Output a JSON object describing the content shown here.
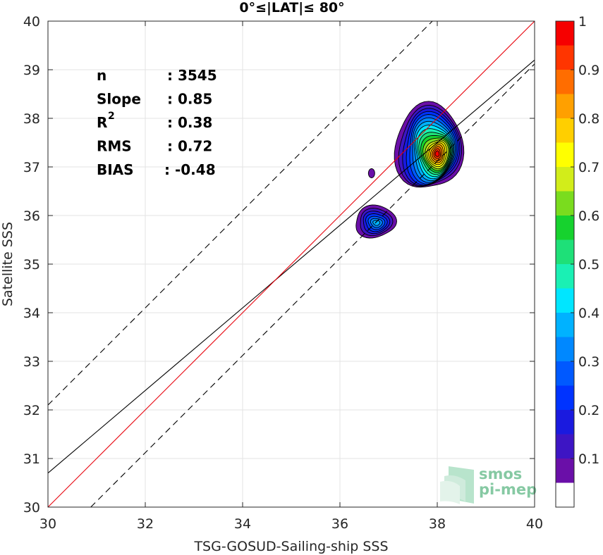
{
  "chart_data": {
    "type": "contour",
    "title": "0°≤|LAT|≤ 80°",
    "xlabel": "TSG-GOSUD-Sailing-ship SSS",
    "ylabel": "Satellite SSS",
    "xlim": [
      30,
      40
    ],
    "ylim": [
      30,
      40
    ],
    "x_ticks": [
      "30",
      "32",
      "34",
      "36",
      "38",
      "40"
    ],
    "y_ticks": [
      "30",
      "31",
      "32",
      "33",
      "34",
      "35",
      "36",
      "37",
      "38",
      "39",
      "40"
    ],
    "grid": true,
    "stats": [
      {
        "label": "n",
        "value": ": 3545"
      },
      {
        "label": "Slope",
        "value": ": 0.85"
      },
      {
        "label": "R",
        "sup": "2",
        "value": ": 0.38"
      },
      {
        "label": "RMS",
        "value": ": 0.72"
      },
      {
        "label": "BIAS",
        "value": ": -0.48"
      }
    ],
    "lines": {
      "identity": {
        "slope": 1,
        "intercept": 0,
        "color": "#e8000b"
      },
      "fit": {
        "slope": 0.85,
        "intercept": 5.2,
        "color": "#000000"
      },
      "upper_dashed": {
        "slope": 1,
        "intercept": 2.1,
        "color": "#000000"
      },
      "lower_dashed": {
        "slope": 1,
        "intercept": -0.88,
        "color": "#000000"
      }
    },
    "colorbar": {
      "ticks": [
        "0.1",
        "0.2",
        "0.3",
        "0.4",
        "0.5",
        "0.6",
        "0.7",
        "0.8",
        "0.9",
        "1"
      ],
      "range": [
        0,
        1
      ],
      "levels": [
        0,
        0.05,
        0.1,
        0.15,
        0.2,
        0.25,
        0.3,
        0.35,
        0.4,
        0.45,
        0.5,
        0.55,
        0.6,
        0.65,
        0.7,
        0.75,
        0.8,
        0.85,
        0.9,
        0.95,
        1.0
      ],
      "colors": [
        "#ffffff",
        "#6a0fa8",
        "#3d15c4",
        "#1a1adf",
        "#0033ff",
        "#0059ff",
        "#0088ff",
        "#00b2ff",
        "#00e6ff",
        "#1af0b4",
        "#1ee078",
        "#16d22e",
        "#7adc1e",
        "#d2ed1a",
        "#ffff00",
        "#ffcf00",
        "#ffa000",
        "#ff6d00",
        "#ff3500",
        "#f60000",
        "#9e0000"
      ]
    },
    "clusters": [
      {
        "name": "main",
        "x": 38.0,
        "y": 37.27,
        "peak": 1.0,
        "outer_x": [
          37.15,
          38.5
        ],
        "outer_y": [
          36.5,
          38.33
        ]
      },
      {
        "name": "secondary",
        "x": 36.75,
        "y": 35.85,
        "peak": 0.4,
        "outer_x": [
          36.3,
          37.15
        ],
        "outer_y": [
          35.55,
          36.2
        ]
      },
      {
        "name": "small",
        "x": 36.65,
        "y": 36.87,
        "peak": 0.1
      }
    ],
    "watermark": {
      "line1": "smos",
      "line2": "pi-mep"
    }
  }
}
